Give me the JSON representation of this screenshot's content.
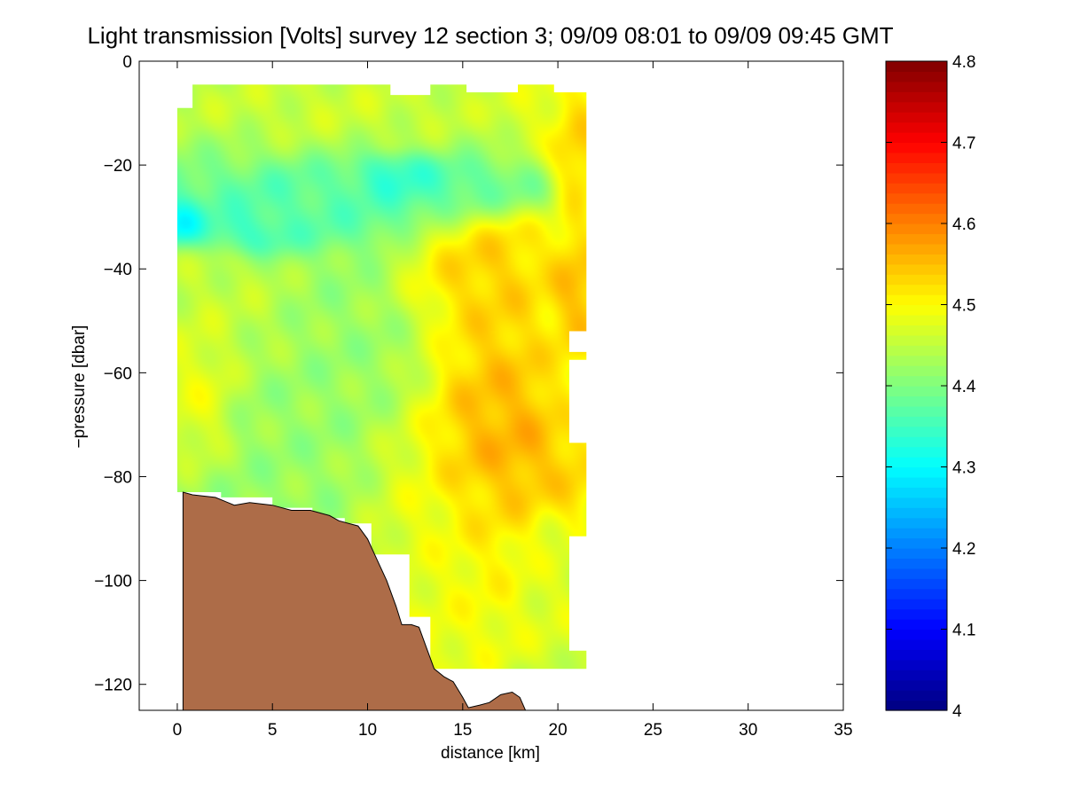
{
  "chart_data": {
    "type": "heatmap",
    "title": "Light transmission [Volts] survey 12 section 3; 09/09 08:01 to 09/09 09:45 GMT",
    "xlabel": "distance [km]",
    "ylabel": "−pressure [dbar]",
    "xlim": [
      -2,
      35
    ],
    "ylim": [
      -125,
      0
    ],
    "x_ticks": [
      0,
      5,
      10,
      15,
      20,
      25,
      30,
      35
    ],
    "x_tick_labels": [
      "0",
      "5",
      "10",
      "15",
      "20",
      "25",
      "30",
      "35"
    ],
    "y_ticks": [
      0,
      -20,
      -40,
      -60,
      -80,
      -100,
      -120
    ],
    "y_tick_labels": [
      "0",
      "−20",
      "−40",
      "−60",
      "−80",
      "−100",
      "−120"
    ],
    "colorbar": {
      "colormap": "jet",
      "range": [
        4.0,
        4.8
      ],
      "ticks": [
        4.0,
        4.1,
        4.2,
        4.3,
        4.4,
        4.5,
        4.6,
        4.7,
        4.8
      ],
      "tick_labels": [
        "4",
        "4.1",
        "4.2",
        "4.3",
        "4.4",
        "4.5",
        "4.6",
        "4.7",
        "4.8"
      ]
    },
    "field": {
      "background_value": 4.42,
      "features": [
        {
          "type": "blob",
          "x": 0.2,
          "y": -31,
          "sx": 0.8,
          "sy": 2.5,
          "value": 4.22
        },
        {
          "type": "blob",
          "x": 3.5,
          "y": -33,
          "sx": 1.4,
          "sy": 2.5,
          "value": 4.3
        },
        {
          "type": "blob",
          "x": 4.5,
          "y": -28,
          "sx": 4.0,
          "sy": 4.0,
          "value": 4.36
        },
        {
          "type": "blob",
          "x": 11.5,
          "y": -23,
          "sx": 1.2,
          "sy": 2.5,
          "value": 4.31
        },
        {
          "type": "blob",
          "x": 14.5,
          "y": -25,
          "sx": 2.5,
          "sy": 3.0,
          "value": 4.35
        },
        {
          "type": "blob",
          "x": 8.0,
          "y": -28,
          "sx": 3.5,
          "sy": 3.5,
          "value": 4.37
        },
        {
          "type": "blob",
          "x": 9.0,
          "y": -8,
          "sx": 6.0,
          "sy": 4.0,
          "value": 4.47
        },
        {
          "type": "blob",
          "x": 1.0,
          "y": -62,
          "sx": 1.0,
          "sy": 8.0,
          "value": 4.5
        },
        {
          "type": "blob",
          "x": 2.0,
          "y": -45,
          "sx": 2.0,
          "sy": 8.0,
          "value": 4.46
        },
        {
          "type": "blob",
          "x": 14.0,
          "y": -90,
          "sx": 2.0,
          "sy": 12.0,
          "value": 4.5
        },
        {
          "type": "blob",
          "x": 14.0,
          "y": -110,
          "sx": 2.0,
          "sy": 6.0,
          "value": 4.5
        },
        {
          "type": "blob",
          "x": 16.5,
          "y": -40,
          "sx": 2.2,
          "sy": 7.0,
          "value": 4.56
        },
        {
          "type": "blob",
          "x": 17.0,
          "y": -62,
          "sx": 1.8,
          "sy": 10.0,
          "value": 4.57
        },
        {
          "type": "blob",
          "x": 17.0,
          "y": -76,
          "sx": 2.0,
          "sy": 8.0,
          "value": 4.6
        },
        {
          "type": "blob",
          "x": 16.5,
          "y": -90,
          "sx": 1.2,
          "sy": 10.0,
          "value": 4.53
        },
        {
          "type": "blob",
          "x": 16.5,
          "y": -105,
          "sx": 1.0,
          "sy": 8.0,
          "value": 4.5
        },
        {
          "type": "blob",
          "x": 21.0,
          "y": -15,
          "sx": 0.8,
          "sy": 8.0,
          "value": 4.57
        },
        {
          "type": "blob",
          "x": 21.0,
          "y": -45,
          "sx": 0.8,
          "sy": 8.0,
          "value": 4.58
        },
        {
          "type": "blob",
          "x": 20.8,
          "y": -80,
          "sx": 0.8,
          "sy": 6.0,
          "value": 4.55
        },
        {
          "type": "blob",
          "x": 19.8,
          "y": -105,
          "sx": 1.5,
          "sy": 8.0,
          "value": 4.49
        },
        {
          "type": "blob",
          "x": 19.5,
          "y": -8,
          "sx": 1.5,
          "sy": 5.0,
          "value": 4.5
        }
      ]
    },
    "data_region_outline": [
      [
        0,
        -9
      ],
      [
        0.8,
        -9
      ],
      [
        0.8,
        -4.5
      ],
      [
        11.2,
        -4.5
      ],
      [
        11.2,
        -6.5
      ],
      [
        13.3,
        -6.5
      ],
      [
        13.3,
        -4.5
      ],
      [
        15.2,
        -4.5
      ],
      [
        15.2,
        -6
      ],
      [
        17.9,
        -6
      ],
      [
        17.9,
        -4.5
      ],
      [
        19.8,
        -4.5
      ],
      [
        19.8,
        -6
      ],
      [
        21.5,
        -6
      ],
      [
        21.5,
        -52
      ],
      [
        20.6,
        -52
      ],
      [
        20.6,
        -56
      ],
      [
        21.5,
        -56
      ],
      [
        21.5,
        -57.5
      ],
      [
        20.6,
        -57.5
      ],
      [
        20.6,
        -73.5
      ],
      [
        21.5,
        -73.5
      ],
      [
        21.5,
        -91.5
      ],
      [
        20.6,
        -91.5
      ],
      [
        20.6,
        -113.5
      ],
      [
        21.5,
        -113.5
      ],
      [
        21.5,
        -117
      ],
      [
        13.3,
        -117
      ],
      [
        13.3,
        -107
      ],
      [
        12.2,
        -107
      ],
      [
        12.2,
        -95
      ],
      [
        10.2,
        -95
      ],
      [
        10.2,
        -89
      ],
      [
        8.8,
        -89
      ],
      [
        8.8,
        -88
      ],
      [
        7.1,
        -88
      ],
      [
        7.1,
        -86
      ],
      [
        5.0,
        -86
      ],
      [
        5.0,
        -84
      ],
      [
        2.3,
        -84
      ],
      [
        2.3,
        -83
      ],
      [
        0.0,
        -83
      ]
    ],
    "bathymetry": {
      "color": "#AD6C48",
      "points": [
        [
          0.3,
          -83
        ],
        [
          0.8,
          -83.5
        ],
        [
          2.0,
          -84
        ],
        [
          3.0,
          -85.5
        ],
        [
          3.8,
          -85
        ],
        [
          5.0,
          -85.5
        ],
        [
          6.0,
          -86.5
        ],
        [
          7.0,
          -86.5
        ],
        [
          8.0,
          -87.5
        ],
        [
          8.5,
          -88.5
        ],
        [
          9.5,
          -89.5
        ],
        [
          10.0,
          -92
        ],
        [
          10.5,
          -96
        ],
        [
          11.0,
          -100
        ],
        [
          11.5,
          -105
        ],
        [
          11.8,
          -108.5
        ],
        [
          12.3,
          -108.5
        ],
        [
          12.7,
          -109
        ],
        [
          13.1,
          -113
        ],
        [
          13.5,
          -117
        ],
        [
          14.0,
          -118.5
        ],
        [
          14.5,
          -119.5
        ],
        [
          15.0,
          -122.5
        ],
        [
          15.3,
          -124.5
        ],
        [
          15.9,
          -124
        ],
        [
          16.4,
          -123.5
        ],
        [
          17.0,
          -122
        ],
        [
          17.6,
          -121.5
        ],
        [
          18.0,
          -122.5
        ],
        [
          18.3,
          -125
        ]
      ]
    }
  }
}
